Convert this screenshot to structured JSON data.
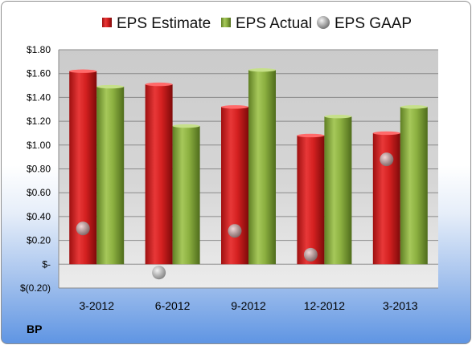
{
  "company_label": "BP",
  "chart_data": {
    "type": "bar",
    "categories": [
      "3-2012",
      "6-2012",
      "9-2012",
      "12-2012",
      "3-2013"
    ],
    "series": [
      {
        "name": "EPS Estimate",
        "kind": "bar",
        "color": "#d42020",
        "values": [
          1.62,
          1.51,
          1.32,
          1.08,
          1.1
        ]
      },
      {
        "name": "EPS Actual",
        "kind": "bar",
        "color": "#8cb040",
        "values": [
          1.49,
          1.16,
          1.63,
          1.24,
          1.32
        ]
      },
      {
        "name": "EPS GAAP",
        "kind": "marker",
        "color": "#a8a8a8",
        "values": [
          0.3,
          -0.07,
          0.28,
          0.08,
          0.88
        ]
      }
    ],
    "ylim": [
      -0.2,
      1.8
    ],
    "yticks": [
      1.8,
      1.6,
      1.4,
      1.2,
      1.0,
      0.8,
      0.6,
      0.4,
      0.2,
      0.0,
      -0.2
    ],
    "ytick_labels": [
      "$1.80",
      "$1.60",
      "$1.40",
      "$1.20",
      "$1.00",
      "$0.80",
      "$0.60",
      "$0.40",
      "$0.20",
      "$-",
      "$(0.20)"
    ],
    "grid": true,
    "legend": "top",
    "title": "",
    "xlabel": "",
    "ylabel": ""
  }
}
